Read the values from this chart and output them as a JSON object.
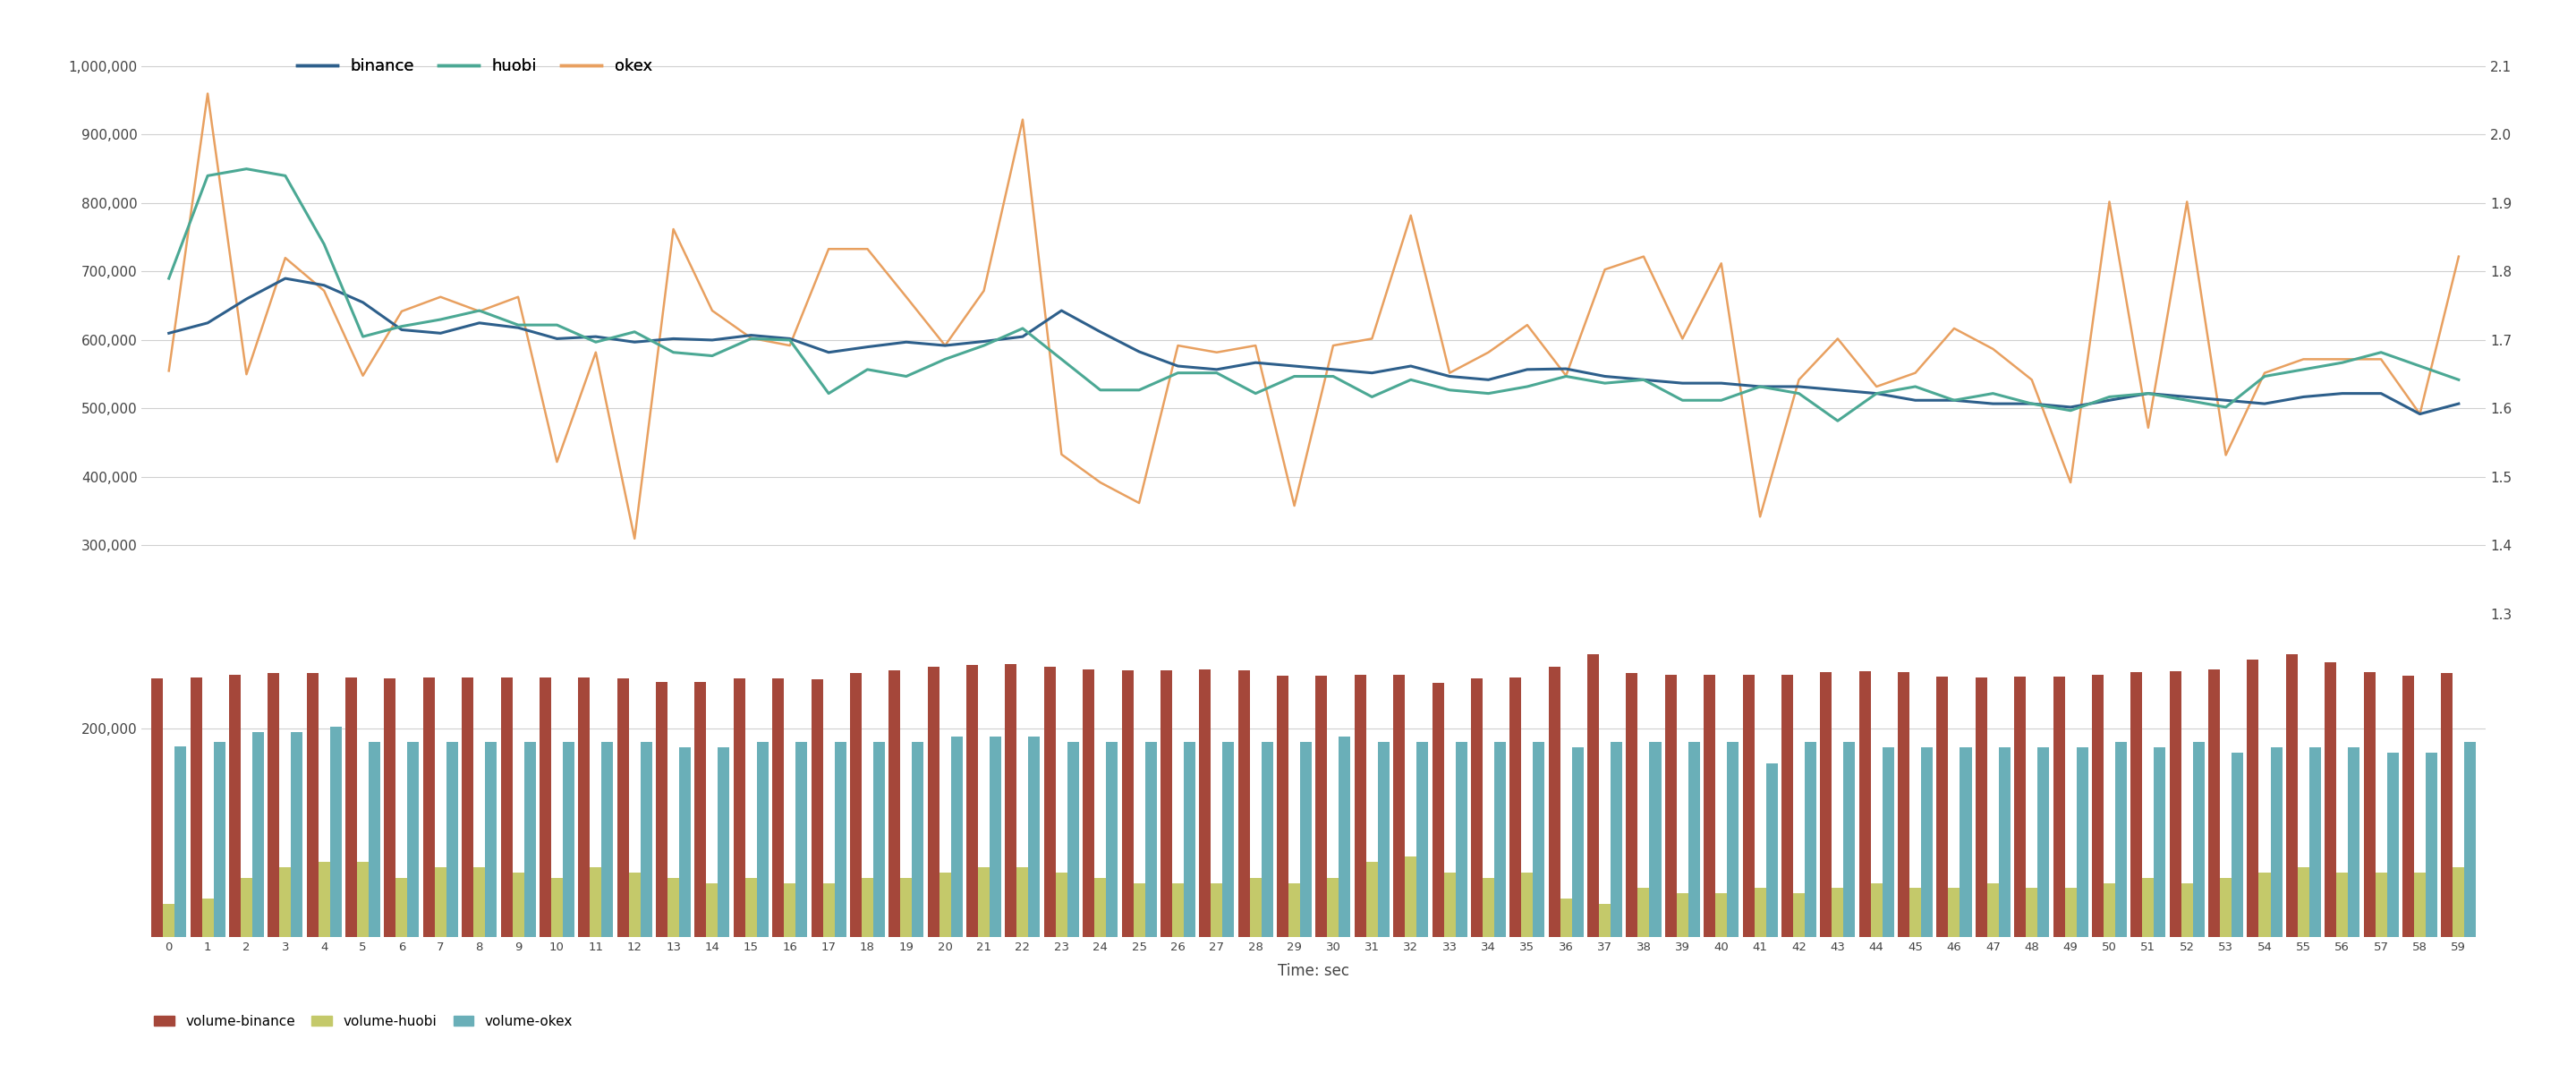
{
  "title": "",
  "xlabel": "Time: sec",
  "background_color": "#ffffff",
  "grid_color": "#d0d0d0",
  "text_color": "#444444",
  "legend_lines": [
    "binance",
    "huobi",
    "okex"
  ],
  "legend_bars": [
    "volume-binance",
    "volume-huobi",
    "volume-okex"
  ],
  "line_colors": {
    "binance": "#2D5F8B",
    "huobi": "#4BA894",
    "okex": "#E8A060"
  },
  "bar_colors": {
    "volume-binance": "#A5473A",
    "volume-huobi": "#C4C96A",
    "volume-okex": "#6AAFB8"
  },
  "ylim_left": [
    200000,
    1050000
  ],
  "ylim_bars": [
    0,
    310000
  ],
  "yticks_left": [
    300000,
    400000,
    500000,
    600000,
    700000,
    800000,
    900000,
    1000000
  ],
  "yticks_right": [
    1.3,
    1.4,
    1.5,
    1.6,
    1.7,
    1.8,
    1.9,
    2.0,
    2.1
  ],
  "yticks_bars": [
    200000
  ],
  "x": [
    0,
    1,
    2,
    3,
    4,
    5,
    6,
    7,
    8,
    9,
    10,
    11,
    12,
    13,
    14,
    15,
    16,
    17,
    18,
    19,
    20,
    21,
    22,
    23,
    24,
    25,
    26,
    27,
    28,
    29,
    30,
    31,
    32,
    33,
    34,
    35,
    36,
    37,
    38,
    39,
    40,
    41,
    42,
    43,
    44,
    45,
    46,
    47,
    48,
    49,
    50,
    51,
    52,
    53,
    54,
    55,
    56,
    57,
    58,
    59
  ],
  "binance": [
    610000,
    625000,
    660000,
    690000,
    680000,
    655000,
    615000,
    610000,
    625000,
    618000,
    602000,
    605000,
    597000,
    602000,
    600000,
    607000,
    602000,
    582000,
    590000,
    597000,
    592000,
    598000,
    605000,
    643000,
    612000,
    583000,
    562000,
    557000,
    567000,
    562000,
    557000,
    552000,
    562000,
    547000,
    542000,
    557000,
    558000,
    547000,
    542000,
    537000,
    537000,
    532000,
    532000,
    527000,
    522000,
    512000,
    512000,
    507000,
    507000,
    502000,
    512000,
    522000,
    517000,
    512000,
    507000,
    517000,
    522000,
    522000,
    492000,
    507000
  ],
  "huobi": [
    690000,
    840000,
    850000,
    840000,
    740000,
    605000,
    620000,
    630000,
    643000,
    622000,
    622000,
    597000,
    612000,
    582000,
    577000,
    602000,
    600000,
    522000,
    557000,
    547000,
    572000,
    592000,
    617000,
    572000,
    527000,
    527000,
    552000,
    552000,
    522000,
    547000,
    547000,
    517000,
    542000,
    527000,
    522000,
    532000,
    547000,
    537000,
    542000,
    512000,
    512000,
    532000,
    522000,
    482000,
    522000,
    532000,
    512000,
    522000,
    507000,
    497000,
    517000,
    522000,
    512000,
    502000,
    547000,
    557000,
    567000,
    582000,
    562000,
    542000
  ],
  "okex": [
    555000,
    960000,
    550000,
    720000,
    672000,
    548000,
    642000,
    663000,
    642000,
    663000,
    422000,
    582000,
    310000,
    762000,
    643000,
    603000,
    592000,
    733000,
    733000,
    663000,
    592000,
    672000,
    922000,
    433000,
    392000,
    362000,
    592000,
    582000,
    592000,
    358000,
    592000,
    602000,
    782000,
    552000,
    582000,
    622000,
    548000,
    703000,
    722000,
    602000,
    712000,
    342000,
    542000,
    602000,
    532000,
    552000,
    617000,
    587000,
    542000,
    392000,
    802000,
    472000,
    802000,
    432000,
    552000,
    572000,
    572000,
    572000,
    492000,
    722000
  ],
  "vol_binance": [
    248000,
    249000,
    252000,
    253000,
    253000,
    249000,
    248000,
    249000,
    249000,
    249000,
    249000,
    249000,
    248000,
    245000,
    245000,
    248000,
    248000,
    247000,
    253000,
    256000,
    259000,
    261000,
    262000,
    259000,
    257000,
    256000,
    256000,
    257000,
    256000,
    251000,
    251000,
    252000,
    252000,
    244000,
    248000,
    249000,
    259000,
    271000,
    253000,
    252000,
    252000,
    252000,
    252000,
    254000,
    255000,
    254000,
    250000,
    249000,
    250000,
    250000,
    252000,
    254000,
    255000,
    257000,
    266000,
    271000,
    264000,
    254000,
    251000,
    253000
  ],
  "vol_huobi": [
    32000,
    37000,
    57000,
    67000,
    72000,
    72000,
    57000,
    67000,
    67000,
    62000,
    57000,
    67000,
    62000,
    57000,
    52000,
    57000,
    52000,
    52000,
    57000,
    57000,
    62000,
    67000,
    67000,
    62000,
    57000,
    52000,
    52000,
    52000,
    57000,
    52000,
    57000,
    72000,
    77000,
    62000,
    57000,
    62000,
    37000,
    32000,
    47000,
    42000,
    42000,
    47000,
    42000,
    47000,
    52000,
    47000,
    47000,
    52000,
    47000,
    47000,
    52000,
    57000,
    52000,
    57000,
    62000,
    67000,
    62000,
    62000,
    62000,
    67000
  ],
  "vol_okex": [
    183000,
    187000,
    197000,
    197000,
    202000,
    187000,
    187000,
    187000,
    187000,
    187000,
    187000,
    187000,
    187000,
    182000,
    182000,
    187000,
    187000,
    187000,
    187000,
    187000,
    192000,
    192000,
    192000,
    187000,
    187000,
    187000,
    187000,
    187000,
    187000,
    187000,
    192000,
    187000,
    187000,
    187000,
    187000,
    187000,
    182000,
    187000,
    187000,
    187000,
    187000,
    167000,
    187000,
    187000,
    182000,
    182000,
    182000,
    182000,
    182000,
    182000,
    187000,
    182000,
    187000,
    177000,
    182000,
    182000,
    182000,
    177000,
    177000,
    187000
  ]
}
